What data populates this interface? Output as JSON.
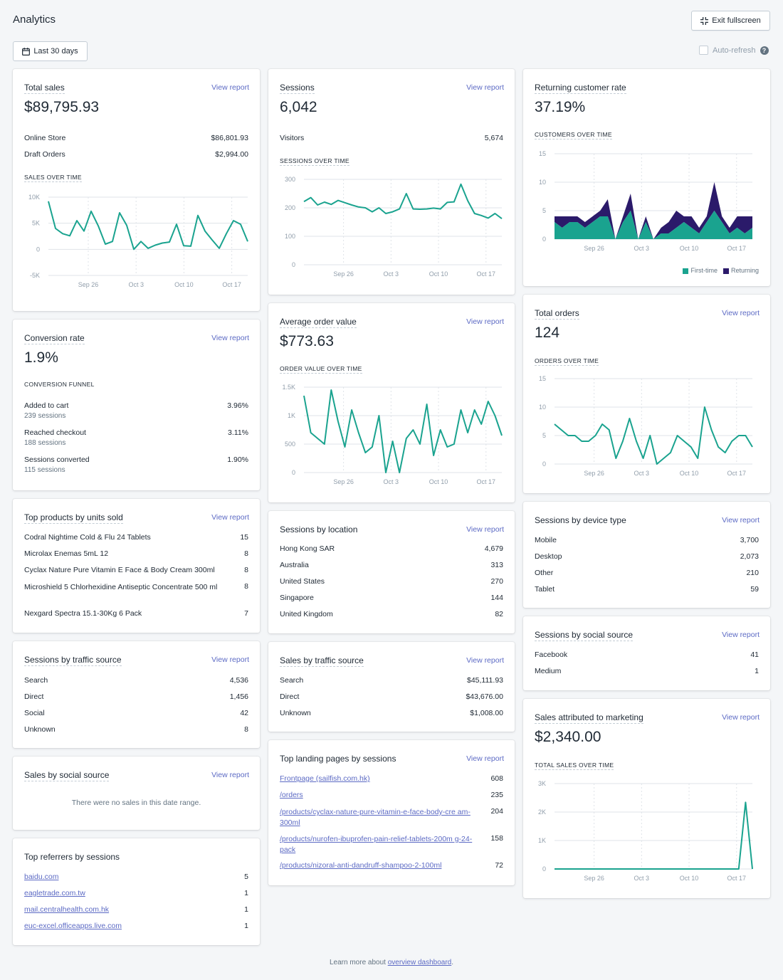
{
  "header": {
    "title": "Analytics",
    "exit_label": "Exit fullscreen",
    "date_label": "Last 30 days",
    "autorefresh_label": "Auto-refresh"
  },
  "common": {
    "view_report": "View report"
  },
  "x_ticks": [
    "Sep 26",
    "Oct 3",
    "Oct 10",
    "Oct 17"
  ],
  "total_sales": {
    "title": "Total sales",
    "value": "$89,795.93",
    "rows": [
      {
        "label": "Online Store",
        "value": "$86,801.93"
      },
      {
        "label": "Draft Orders",
        "value": "$2,994.00"
      }
    ],
    "chart_label": "Sales over time"
  },
  "sessions": {
    "title": "Sessions",
    "value": "6,042",
    "rows": [
      {
        "label": "Visitors",
        "value": "5,674"
      }
    ],
    "chart_label": "Sessions over time"
  },
  "returning": {
    "title": "Returning customer rate",
    "value": "37.19%",
    "chart_label": "Customers over time",
    "legend": {
      "first": "First-time",
      "returning": "Returning"
    }
  },
  "conversion": {
    "title": "Conversion rate",
    "value": "1.9%",
    "funnel_label": "Conversion funnel",
    "rows": [
      {
        "label": "Added to cart",
        "sub": "239 sessions",
        "value": "3.96%"
      },
      {
        "label": "Reached checkout",
        "sub": "188 sessions",
        "value": "3.11%"
      },
      {
        "label": "Sessions converted",
        "sub": "115 sessions",
        "value": "1.90%"
      }
    ]
  },
  "aov": {
    "title": "Average order value",
    "value": "$773.63",
    "chart_label": "Order value over time"
  },
  "orders": {
    "title": "Total orders",
    "value": "124",
    "chart_label": "Orders over time"
  },
  "top_products": {
    "title": "Top products by units sold",
    "rows": [
      {
        "label": "Codral Nightime Cold & Flu 24 Tablets",
        "value": "15"
      },
      {
        "label": "Microlax Enemas 5mL 12",
        "value": "8"
      },
      {
        "label": "Cyclax Nature Pure Vitamin E Face & Body Cream 300ml",
        "value": "8"
      },
      {
        "label": "Microshield 5 Chlorhexidine Antiseptic Concentrate 500 ml",
        "value": "8"
      },
      {
        "label": "Nexgard Spectra 15.1-30Kg 6 Pack",
        "value": "7"
      }
    ]
  },
  "location": {
    "title": "Sessions by location",
    "rows": [
      {
        "label": "Hong Kong SAR",
        "value": "4,679"
      },
      {
        "label": "Australia",
        "value": "313"
      },
      {
        "label": "United States",
        "value": "270"
      },
      {
        "label": "Singapore",
        "value": "144"
      },
      {
        "label": "United Kingdom",
        "value": "82"
      }
    ]
  },
  "device": {
    "title": "Sessions by device type",
    "rows": [
      {
        "label": "Mobile",
        "value": "3,700"
      },
      {
        "label": "Desktop",
        "value": "2,073"
      },
      {
        "label": "Other",
        "value": "210"
      },
      {
        "label": "Tablet",
        "value": "59"
      }
    ]
  },
  "social_source": {
    "title": "Sessions by social source",
    "rows": [
      {
        "label": "Facebook",
        "value": "41"
      },
      {
        "label": "Medium",
        "value": "1"
      }
    ]
  },
  "traffic_source": {
    "title": "Sessions by traffic source",
    "rows": [
      {
        "label": "Search",
        "value": "4,536"
      },
      {
        "label": "Direct",
        "value": "1,456"
      },
      {
        "label": "Social",
        "value": "42"
      },
      {
        "label": "Unknown",
        "value": "8"
      }
    ]
  },
  "sales_traffic": {
    "title": "Sales by traffic source",
    "rows": [
      {
        "label": "Search",
        "value": "$45,111.93"
      },
      {
        "label": "Direct",
        "value": "$43,676.00"
      },
      {
        "label": "Unknown",
        "value": "$1,008.00"
      }
    ]
  },
  "marketing": {
    "title": "Sales attributed to marketing",
    "value": "$2,340.00",
    "chart_label": "Total sales over time"
  },
  "sales_social": {
    "title": "Sales by social source",
    "empty": "There were no sales in this date range."
  },
  "landing": {
    "title": "Top landing pages by sessions",
    "rows": [
      {
        "label": "Frontpage (sailfish.com.hk)",
        "value": "608"
      },
      {
        "label": "/orders",
        "value": "235"
      },
      {
        "label": "/products/cyclax-nature-pure-vitamin-e-face-body-cre am-300ml",
        "value": "204"
      },
      {
        "label": "/products/nurofen-ibuprofen-pain-relief-tablets-200m g-24-pack",
        "value": "158"
      },
      {
        "label": "/products/nizoral-anti-dandruff-shampoo-2-100ml",
        "value": "72"
      }
    ]
  },
  "referrers": {
    "title": "Top referrers by sessions",
    "rows": [
      {
        "label": "baidu.com",
        "value": "5"
      },
      {
        "label": "eagletrade.com.tw",
        "value": "1"
      },
      {
        "label": "mail.centralhealth.com.hk",
        "value": "1"
      },
      {
        "label": "euc-excel.officeapps.live.com",
        "value": "1"
      }
    ]
  },
  "footer": {
    "text": "Learn more about ",
    "link": "overview dashboard",
    "end": "."
  },
  "chart_data": [
    {
      "type": "line",
      "name": "sales_over_time",
      "title": "Sales over time",
      "x_ticks": [
        "Sep 26",
        "Oct 3",
        "Oct 10",
        "Oct 17"
      ],
      "y_ticks": [
        "-5K",
        "0",
        "5K",
        "10K"
      ],
      "ylim": [
        -5000,
        10000
      ],
      "color": "#1aa38f",
      "values": [
        9200,
        4000,
        3000,
        2600,
        5500,
        3500,
        7300,
        4500,
        1000,
        1500,
        7000,
        4600,
        0,
        1500,
        200,
        800,
        1200,
        1400,
        4800,
        700,
        600,
        6500,
        3500,
        1800,
        200,
        3000,
        5500,
        4800,
        1500
      ]
    },
    {
      "type": "line",
      "name": "sessions_over_time",
      "title": "Sessions over time",
      "x_ticks": [
        "Sep 26",
        "Oct 3",
        "Oct 10",
        "Oct 17"
      ],
      "y_ticks": [
        "0",
        "100",
        "200",
        "300"
      ],
      "ylim": [
        0,
        300
      ],
      "color": "#1aa38f",
      "values": [
        222,
        236,
        210,
        220,
        212,
        226,
        218,
        210,
        203,
        200,
        186,
        200,
        180,
        186,
        196,
        250,
        196,
        195,
        196,
        199,
        196,
        219,
        221,
        283,
        225,
        180,
        173,
        164,
        180,
        162
      ]
    },
    {
      "type": "area",
      "name": "customers_over_time",
      "title": "Customers over time",
      "x_ticks": [
        "Sep 26",
        "Oct 3",
        "Oct 10",
        "Oct 17"
      ],
      "y_ticks": [
        "0",
        "5",
        "10",
        "15"
      ],
      "ylim": [
        0,
        15
      ],
      "colors": {
        "first": "#1aa38f",
        "returning": "#2b1a6a"
      },
      "series": [
        {
          "name": "First-time",
          "values": [
            3,
            2,
            3,
            3,
            2,
            3,
            4,
            4,
            0,
            3,
            5,
            0,
            3,
            0,
            1,
            1,
            2,
            3,
            2,
            1,
            3,
            5,
            3,
            1,
            2,
            1,
            2
          ]
        },
        {
          "name": "Returning",
          "values": [
            1,
            2,
            1,
            1,
            1,
            1,
            1,
            3,
            0,
            1,
            3,
            0,
            1,
            0,
            1,
            2,
            3,
            1,
            2,
            1,
            1,
            5,
            1,
            1,
            2,
            3,
            2
          ]
        }
      ]
    },
    {
      "type": "line",
      "name": "order_value_over_time",
      "title": "Order value over time",
      "x_ticks": [
        "Sep 26",
        "Oct 3",
        "Oct 10",
        "Oct 17"
      ],
      "y_ticks": [
        "0",
        "500",
        "1K",
        "1.5K"
      ],
      "ylim": [
        0,
        1500
      ],
      "color": "#1aa38f",
      "values": [
        1350,
        700,
        600,
        500,
        1450,
        900,
        450,
        1100,
        700,
        350,
        450,
        1000,
        0,
        550,
        0,
        600,
        750,
        500,
        1200,
        300,
        750,
        450,
        500,
        1100,
        700,
        1100,
        850,
        1250,
        1000,
        650
      ]
    },
    {
      "type": "line",
      "name": "orders_over_time",
      "title": "Orders over time",
      "x_ticks": [
        "Sep 26",
        "Oct 3",
        "Oct 10",
        "Oct 17"
      ],
      "y_ticks": [
        "0",
        "5",
        "10",
        "15"
      ],
      "ylim": [
        0,
        15
      ],
      "color": "#1aa38f",
      "values": [
        7,
        6,
        5,
        5,
        4,
        4,
        5,
        7,
        6,
        1,
        4,
        8,
        4,
        1,
        5,
        0,
        1,
        2,
        5,
        4,
        3,
        1,
        10,
        6,
        3,
        2,
        4,
        5,
        5,
        3
      ]
    },
    {
      "type": "line",
      "name": "marketing_sales_over_time",
      "title": "Total sales over time",
      "x_ticks": [
        "Sep 26",
        "Oct 3",
        "Oct 10",
        "Oct 17"
      ],
      "y_ticks": [
        "0",
        "1K",
        "2K",
        "3K"
      ],
      "ylim": [
        0,
        3000
      ],
      "color": "#1aa38f",
      "values": [
        0,
        0,
        0,
        0,
        0,
        0,
        0,
        0,
        0,
        0,
        0,
        0,
        0,
        0,
        0,
        0,
        0,
        0,
        0,
        0,
        0,
        0,
        0,
        0,
        0,
        0,
        0,
        0,
        2340,
        0
      ]
    }
  ]
}
